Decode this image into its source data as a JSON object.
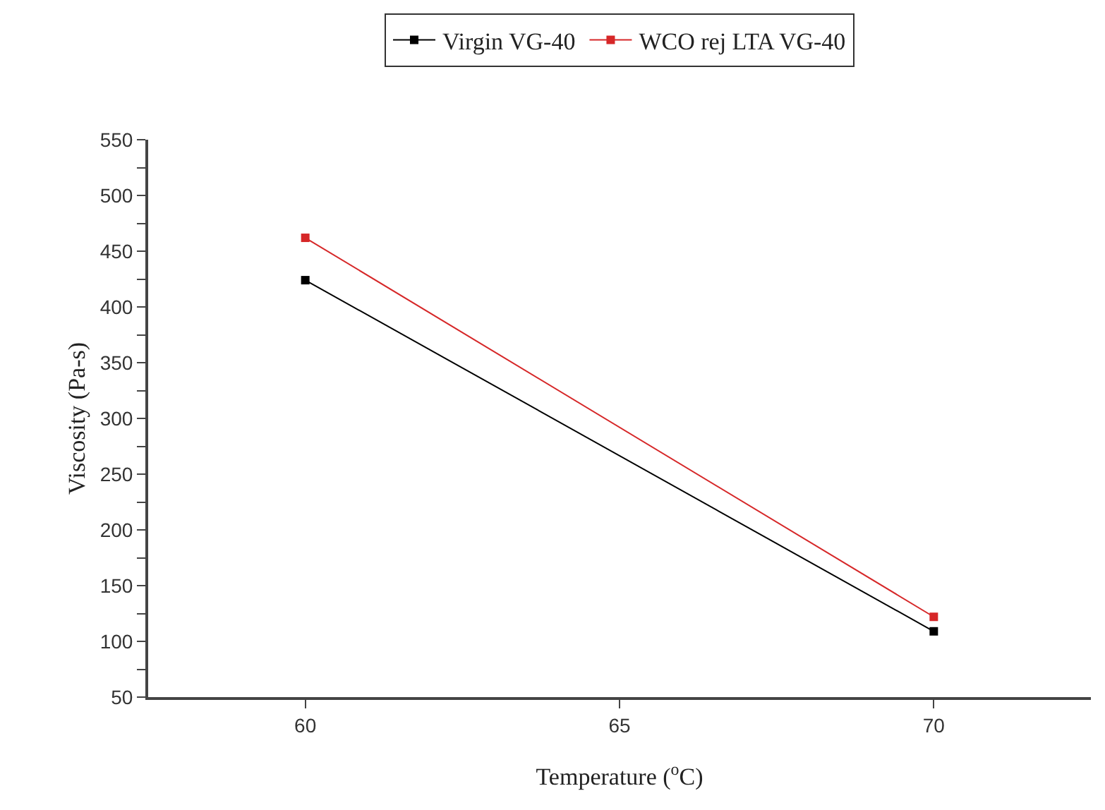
{
  "chart_data": {
    "type": "line",
    "xlabel": "Temperature ($^{o}$C)",
    "ylabel": "Viscosity (Pa-s)",
    "x": [
      60,
      70
    ],
    "series": [
      {
        "name": "Virgin VG-40",
        "color": "#000000",
        "values": [
          424,
          109
        ]
      },
      {
        "name": "WCO rej LTA VG-40",
        "color": "#d62728",
        "values": [
          462,
          122
        ]
      }
    ],
    "xlim": [
      57.5,
      72.5
    ],
    "xticks": [
      60,
      65,
      70
    ],
    "ylim": [
      50,
      550
    ],
    "yticks": [
      50,
      {
        "value": 75,
        "label": null
      },
      100,
      {
        "value": 125,
        "label": null
      },
      150,
      {
        "value": 175,
        "label": null
      },
      200,
      {
        "value": 225,
        "label": null
      },
      250,
      {
        "value": 275,
        "label": null
      },
      300,
      {
        "value": 325,
        "label": null
      },
      350,
      {
        "value": 375,
        "label": null
      },
      400,
      {
        "value": 425,
        "label": null
      },
      450,
      {
        "value": 475,
        "label": null
      },
      500,
      {
        "value": 525,
        "label": null
      },
      550
    ],
    "grid": false,
    "legend": "top",
    "marker": "square",
    "line_style": "solid"
  }
}
